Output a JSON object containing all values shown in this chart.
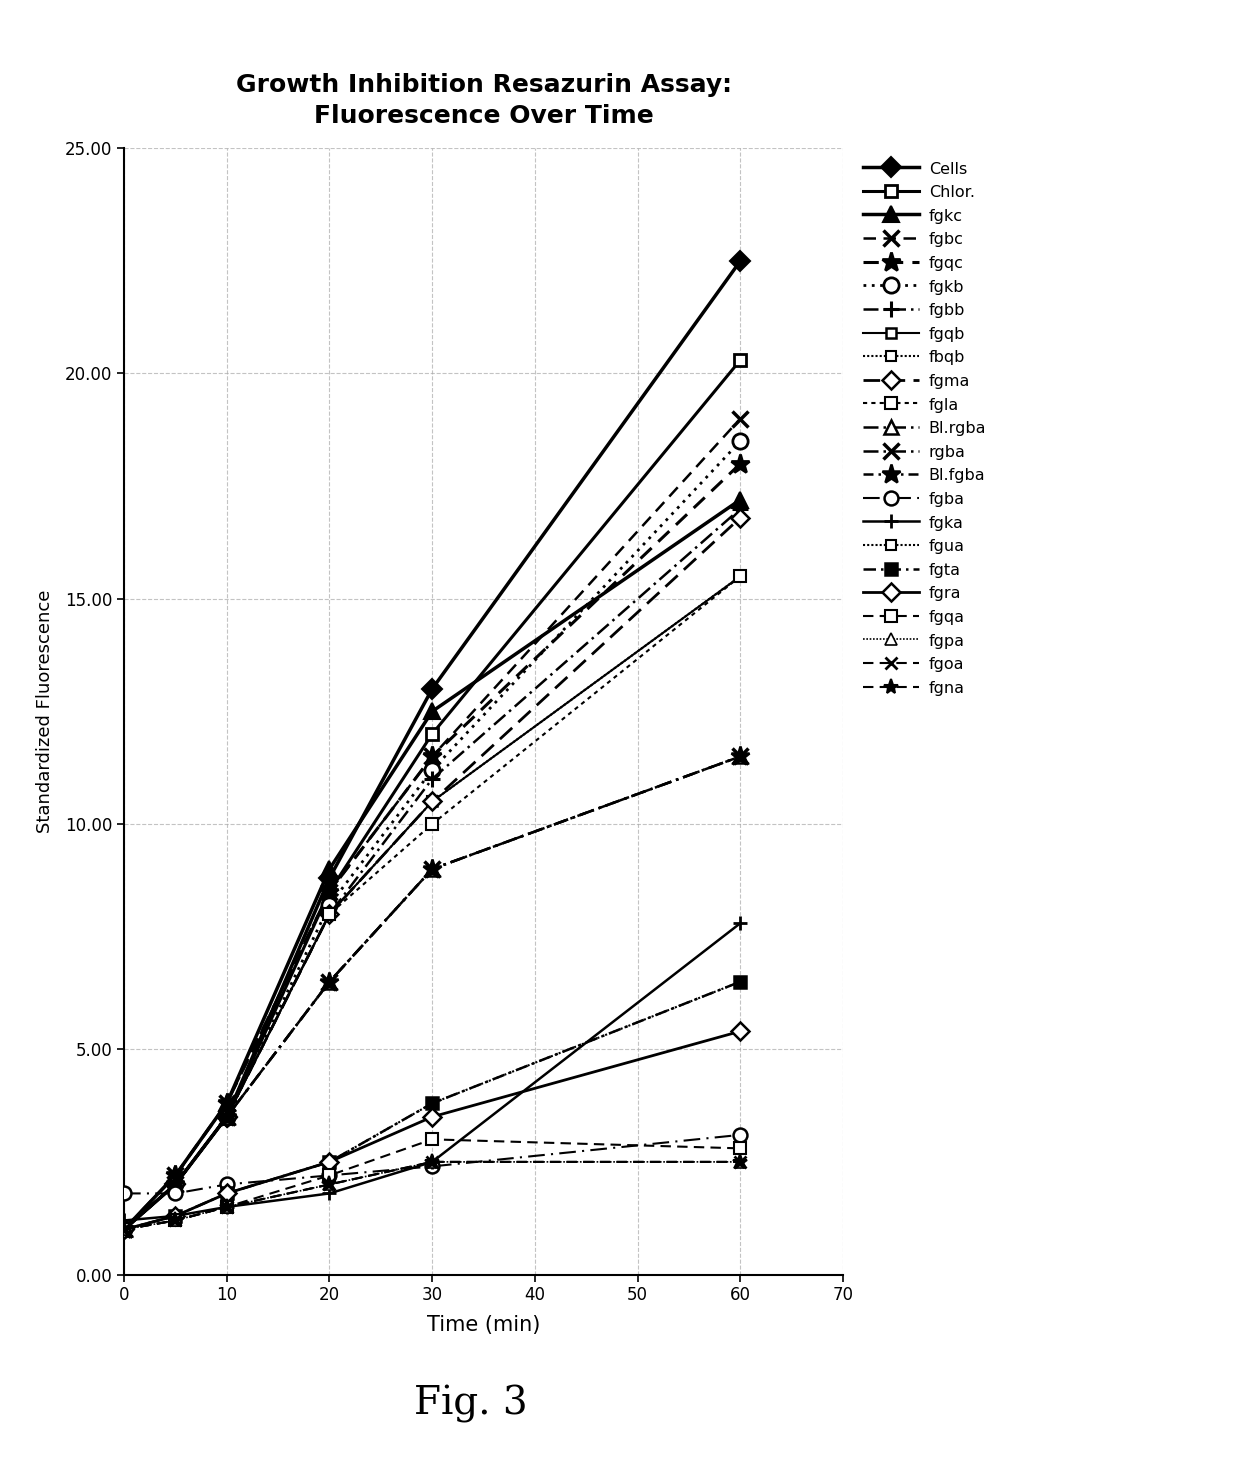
{
  "title": "Growth Inhibition Resazurin Assay:\nFluorescence Over Time",
  "xlabel": "Time (min)",
  "ylabel": "Standardized Fluorescence",
  "fig_label": "Fig. 3",
  "xlim": [
    0,
    70
  ],
  "ylim": [
    0.0,
    25.0
  ],
  "xticks": [
    0,
    10,
    20,
    30,
    40,
    50,
    60,
    70
  ],
  "yticks": [
    0.0,
    5.0,
    10.0,
    15.0,
    20.0,
    25.0
  ],
  "time_points": [
    0,
    5,
    10,
    20,
    30,
    60
  ],
  "series": [
    {
      "label": "Cells",
      "values": [
        1.0,
        2.0,
        3.5,
        8.8,
        13.0,
        22.5
      ]
    },
    {
      "label": "Chlor.",
      "values": [
        1.0,
        2.0,
        3.5,
        8.5,
        12.0,
        20.3
      ]
    },
    {
      "label": "fgkc",
      "values": [
        1.0,
        2.2,
        3.8,
        9.0,
        12.5,
        17.2
      ]
    },
    {
      "label": "fgbc",
      "values": [
        1.0,
        2.2,
        3.8,
        8.5,
        11.5,
        19.0
      ]
    },
    {
      "label": "fgqc",
      "values": [
        1.0,
        2.2,
        3.8,
        8.5,
        11.5,
        18.0
      ]
    },
    {
      "label": "fgkb",
      "values": [
        1.0,
        2.0,
        3.5,
        8.2,
        11.2,
        18.5
      ]
    },
    {
      "label": "fgbb",
      "values": [
        1.0,
        2.0,
        3.5,
        8.0,
        11.0,
        17.0
      ]
    },
    {
      "label": "fgqb",
      "values": [
        1.0,
        2.0,
        3.5,
        8.0,
        10.5,
        15.5
      ]
    },
    {
      "label": "fbqb",
      "values": [
        1.0,
        2.0,
        3.5,
        8.0,
        10.5,
        15.5
      ]
    },
    {
      "label": "fgma",
      "values": [
        1.0,
        2.0,
        3.5,
        8.0,
        10.5,
        16.8
      ]
    },
    {
      "label": "fgla",
      "values": [
        1.0,
        2.0,
        3.5,
        8.0,
        10.0,
        15.5
      ]
    },
    {
      "label": "Bl.rgba",
      "values": [
        1.0,
        2.0,
        3.5,
        6.5,
        9.0,
        11.5
      ]
    },
    {
      "label": "rgba",
      "values": [
        1.0,
        2.0,
        3.5,
        6.5,
        9.0,
        11.5
      ]
    },
    {
      "label": "Bl.fgba",
      "values": [
        1.0,
        2.0,
        3.5,
        6.5,
        9.0,
        11.5
      ]
    },
    {
      "label": "fgba",
      "values": [
        1.8,
        1.8,
        2.0,
        2.2,
        2.4,
        3.1
      ]
    },
    {
      "label": "fgka",
      "values": [
        1.2,
        1.3,
        1.5,
        1.8,
        2.5,
        7.8
      ]
    },
    {
      "label": "fgua",
      "values": [
        1.0,
        1.3,
        1.8,
        2.5,
        3.8,
        6.5
      ]
    },
    {
      "label": "fgta",
      "values": [
        1.0,
        1.3,
        1.8,
        2.5,
        3.8,
        6.5
      ]
    },
    {
      "label": "fgra",
      "values": [
        1.0,
        1.3,
        1.8,
        2.5,
        3.5,
        5.4
      ]
    },
    {
      "label": "fgqa",
      "values": [
        1.0,
        1.2,
        1.5,
        2.2,
        3.0,
        2.8
      ]
    },
    {
      "label": "fgpa",
      "values": [
        1.0,
        1.2,
        1.5,
        2.0,
        2.5,
        2.5
      ]
    },
    {
      "label": "fgoa",
      "values": [
        1.0,
        1.2,
        1.5,
        2.0,
        2.5,
        2.5
      ]
    },
    {
      "label": "fgna",
      "values": [
        1.0,
        1.2,
        1.5,
        2.0,
        2.5,
        2.5
      ]
    }
  ]
}
